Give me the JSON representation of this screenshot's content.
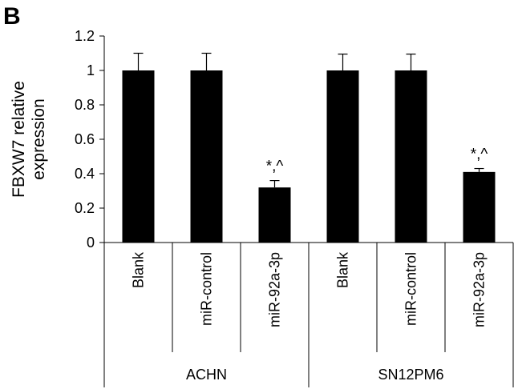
{
  "panel_label": "B",
  "chart_data": {
    "type": "bar",
    "ylabel_lines": [
      "FBXW7 relative",
      "expression"
    ],
    "ylim": [
      0,
      1.2
    ],
    "yticks": [
      "0",
      "0.2",
      "0.4",
      "0.6",
      "0.8",
      "1",
      "1.2"
    ],
    "categories": [
      "Blank",
      "miR-control",
      "miR-92a-3p",
      "Blank",
      "miR-control",
      "miR-92a-3p"
    ],
    "groups": [
      {
        "label": "ACHN",
        "size": 3
      },
      {
        "label": "SN12PM6",
        "size": 3
      }
    ],
    "values": [
      1.0,
      1.0,
      0.32,
      1.0,
      1.0,
      0.41
    ],
    "errors": [
      0.1,
      0.1,
      0.04,
      0.095,
      0.095,
      0.02
    ],
    "annotations": [
      "",
      "",
      "*,^",
      "",
      "",
      "*,^"
    ],
    "bar_color": "#000000"
  }
}
